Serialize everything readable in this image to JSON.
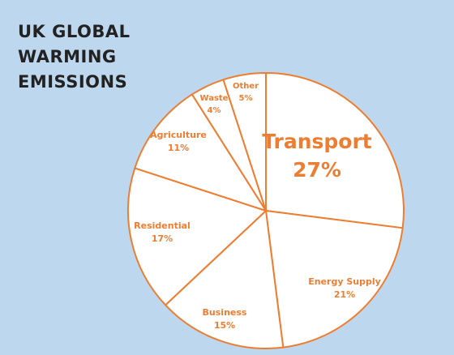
{
  "title_lines": [
    "UK GLOBAL",
    "WARMING",
    "EMISSIONS"
  ],
  "colors": {
    "background": "#bdd7ee",
    "slice_fill": "#ffffff",
    "accent": "#ed7d31",
    "title": "#222222"
  },
  "chart_data": {
    "type": "pie",
    "title": "UK GLOBAL WARMING EMISSIONS",
    "start_angle": "12 o'clock",
    "direction": "clockwise",
    "slices": [
      {
        "label": "Transport",
        "value": 27,
        "value_label": "27%",
        "emphasized": true
      },
      {
        "label": "Energy Supply",
        "value": 21,
        "value_label": "21%"
      },
      {
        "label": "Business",
        "value": 15,
        "value_label": "15%"
      },
      {
        "label": "Residential",
        "value": 17,
        "value_label": "17%"
      },
      {
        "label": "Agriculture",
        "value": 11,
        "value_label": "11%"
      },
      {
        "label": "Waste",
        "value": 4,
        "value_label": "4%"
      },
      {
        "label": "Other",
        "value": 5,
        "value_label": "5%"
      }
    ]
  }
}
